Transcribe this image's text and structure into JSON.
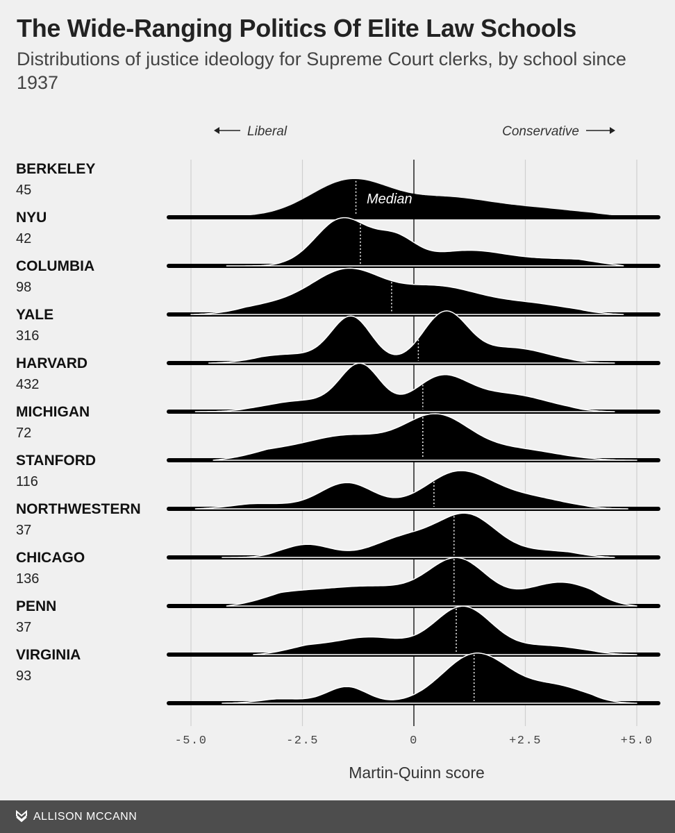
{
  "title": "The Wide-Ranging Politics Of Elite Law Schools",
  "subtitle": "Distributions of justice ideology for Supreme Court clerks, by school since 1937",
  "footer": {
    "author": "ALLISON MCCANN",
    "logo_icon": "fivethirtyeight-logo-icon"
  },
  "chart_data": {
    "type": "ridgeline",
    "xlabel": "Martin-Quinn score",
    "xlim": [
      -5.5,
      5.5
    ],
    "x_ticks": [
      -5,
      -2.5,
      0,
      2.5,
      5
    ],
    "x_tick_labels": [
      "-5.0",
      "-2.5",
      "0",
      "+2.5",
      "+5.0"
    ],
    "direction_labels": {
      "left": "Liberal",
      "right": "Conservative"
    },
    "median_label": "Median",
    "series": [
      {
        "name": "BERKELEY",
        "count": "45",
        "median": -1.3,
        "range": [
          -5,
          5
        ],
        "peaks": [
          [
            -1.4,
            0.85,
            0.9
          ],
          [
            0.7,
            0.35,
            0.9
          ],
          [
            2.5,
            0.2,
            1.2
          ]
        ]
      },
      {
        "name": "NYU",
        "count": "42",
        "median": -1.2,
        "range": [
          -4.2,
          4.7
        ],
        "peaks": [
          [
            -1.6,
            1.1,
            0.6
          ],
          [
            -0.4,
            0.55,
            0.45
          ],
          [
            1.2,
            0.35,
            0.9
          ],
          [
            3.5,
            0.15,
            1.0
          ]
        ]
      },
      {
        "name": "COLUMBIA",
        "count": "98",
        "median": -0.5,
        "range": [
          -5,
          4.7
        ],
        "peaks": [
          [
            -1.5,
            1.0,
            0.8
          ],
          [
            0.5,
            0.6,
            0.9
          ],
          [
            2.5,
            0.25,
            1.0
          ],
          [
            -3.2,
            0.2,
            0.8
          ]
        ]
      },
      {
        "name": "YALE",
        "count": "316",
        "median": 0.1,
        "range": [
          -4.6,
          4.5
        ],
        "peaks": [
          [
            -1.4,
            1.05,
            0.45
          ],
          [
            0.7,
            1.15,
            0.5
          ],
          [
            2.2,
            0.35,
            0.8
          ],
          [
            -2.8,
            0.2,
            0.8
          ]
        ]
      },
      {
        "name": "HARVARD",
        "count": "432",
        "median": 0.2,
        "range": [
          -4.9,
          4.5
        ],
        "peaks": [
          [
            -1.2,
            1.05,
            0.45
          ],
          [
            0.6,
            0.75,
            0.6
          ],
          [
            2.1,
            0.4,
            0.9
          ],
          [
            -2.5,
            0.25,
            0.8
          ]
        ]
      },
      {
        "name": "MICHIGAN",
        "count": "72",
        "median": 0.2,
        "range": [
          -4.5,
          5
        ],
        "peaks": [
          [
            0.5,
            1.0,
            0.75
          ],
          [
            -1.5,
            0.55,
            0.9
          ],
          [
            2.3,
            0.25,
            0.9
          ],
          [
            -3.3,
            0.18,
            0.8
          ]
        ]
      },
      {
        "name": "STANFORD",
        "count": "116",
        "median": 0.45,
        "range": [
          -4.9,
          4.8
        ],
        "peaks": [
          [
            1.0,
            0.85,
            0.75
          ],
          [
            -1.5,
            0.6,
            0.6
          ],
          [
            2.6,
            0.25,
            0.8
          ],
          [
            -3.5,
            0.12,
            0.8
          ]
        ]
      },
      {
        "name": "NORTHWESTERN",
        "count": "37",
        "median": 0.9,
        "range": [
          -4.3,
          4.5
        ],
        "peaks": [
          [
            1.2,
            0.95,
            0.65
          ],
          [
            -0.2,
            0.45,
            0.7
          ],
          [
            -2.4,
            0.3,
            0.55
          ],
          [
            3.0,
            0.15,
            0.8
          ]
        ]
      },
      {
        "name": "CHICAGO",
        "count": "136",
        "median": 0.9,
        "range": [
          -4.2,
          5
        ],
        "peaks": [
          [
            1.0,
            1.0,
            0.65
          ],
          [
            3.3,
            0.55,
            0.8
          ],
          [
            -1.0,
            0.45,
            1.2
          ],
          [
            -3.0,
            0.2,
            0.8
          ]
        ]
      },
      {
        "name": "PENN",
        "count": "37",
        "median": 0.95,
        "range": [
          -3.6,
          5
        ],
        "peaks": [
          [
            1.1,
            1.1,
            0.65
          ],
          [
            -1.0,
            0.4,
            0.8
          ],
          [
            3.0,
            0.2,
            0.8
          ],
          [
            -2.6,
            0.15,
            0.6
          ]
        ]
      },
      {
        "name": "VIRGINIA",
        "count": "93",
        "median": 1.35,
        "range": [
          -4.3,
          5
        ],
        "peaks": [
          [
            1.4,
            1.15,
            0.75
          ],
          [
            -1.5,
            0.38,
            0.45
          ],
          [
            3.2,
            0.38,
            0.7
          ],
          [
            -3.0,
            0.1,
            0.6
          ]
        ]
      }
    ]
  }
}
